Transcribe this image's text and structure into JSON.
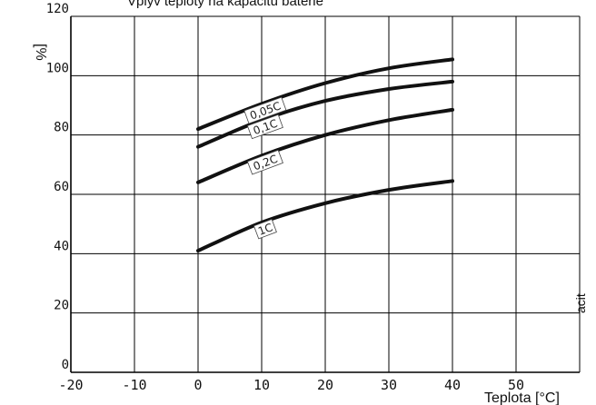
{
  "chart_data": {
    "type": "line",
    "title": "Vplyv teploty na kapacitu batérie",
    "xlabel": "Teplota [°C]",
    "ylabel_left": "[%",
    "ylabel_right": "acit",
    "xlim": [
      -20,
      60
    ],
    "ylim": [
      0,
      120
    ],
    "x_ticks": [
      "-20",
      "-10",
      "0",
      "10",
      "20",
      "30",
      "40",
      "50"
    ],
    "y_ticks": [
      "0",
      "20",
      "40",
      "60",
      "80",
      "100",
      "120"
    ],
    "grid": true,
    "x": [
      0,
      10,
      20,
      30,
      40
    ],
    "series": [
      {
        "name": "0,05C",
        "values": [
          82,
          90.5,
          97.5,
          102.5,
          105.5
        ]
      },
      {
        "name": "0,1C",
        "values": [
          76,
          85,
          91.5,
          95.5,
          98
        ]
      },
      {
        "name": "0,2C",
        "values": [
          64,
          73,
          80,
          85,
          88.5
        ]
      },
      {
        "name": "1C",
        "values": [
          41,
          50.5,
          57,
          61.5,
          64.5
        ]
      }
    ]
  }
}
